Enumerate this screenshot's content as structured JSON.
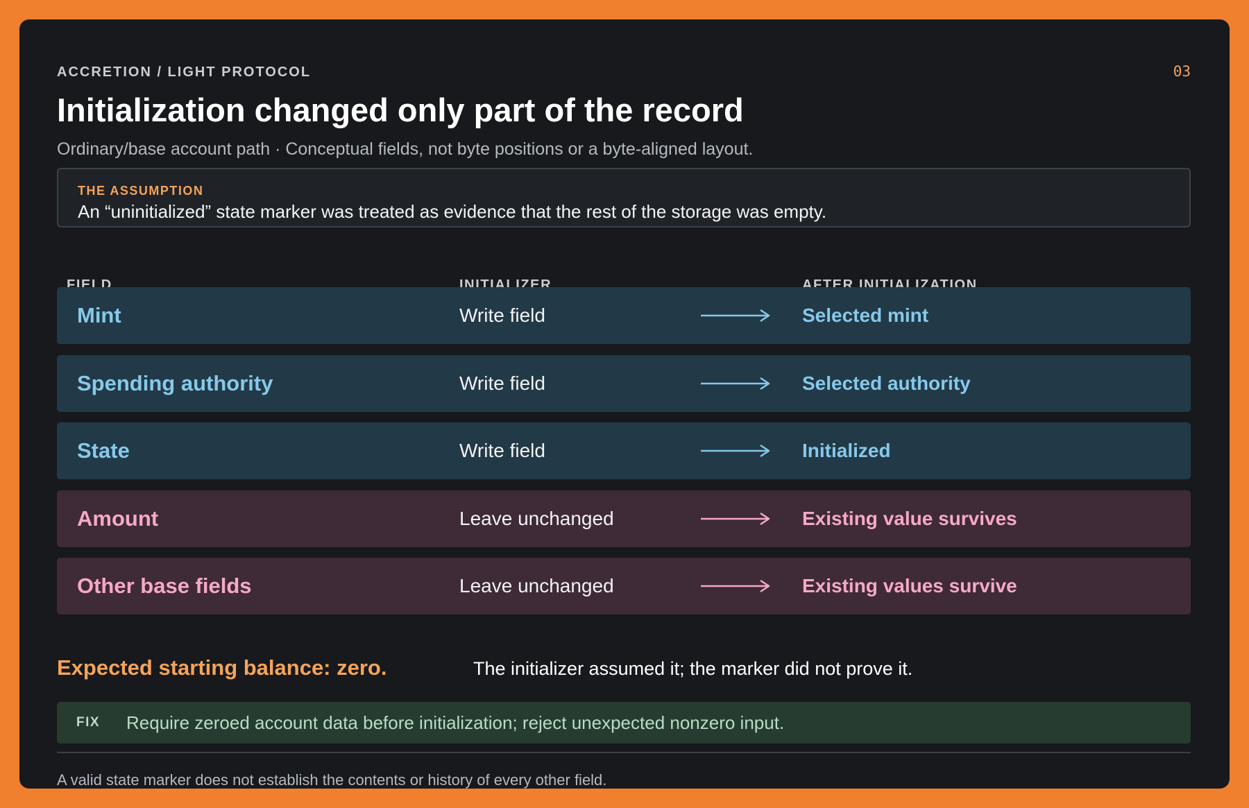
{
  "header": {
    "eyebrow": "ACCRETION / LIGHT PROTOCOL",
    "slide_number": "03",
    "title": "Initialization changed only part of the record",
    "subtitle": "Ordinary/base account path · Conceptual fields, not byte positions or a byte-aligned layout."
  },
  "assumption": {
    "label": "THE ASSUMPTION",
    "text": "An “uninitialized” state marker was treated as evidence that the rest of the storage was empty."
  },
  "table": {
    "columns": [
      "FIELD",
      "INITIALIZER",
      "AFTER INITIALIZATION"
    ],
    "rows": [
      {
        "field": "Mint",
        "initializer": "Write field",
        "after": "Selected mint",
        "kind": "written"
      },
      {
        "field": "Spending authority",
        "initializer": "Write field",
        "after": "Selected authority",
        "kind": "written"
      },
      {
        "field": "State",
        "initializer": "Write field",
        "after": "Initialized",
        "kind": "written"
      },
      {
        "field": "Amount",
        "initializer": "Leave unchanged",
        "after": "Existing value survives",
        "kind": "kept"
      },
      {
        "field": "Other base fields",
        "initializer": "Leave unchanged",
        "after": "Existing values survive",
        "kind": "kept"
      }
    ]
  },
  "expected": {
    "headline": "Expected starting balance: zero.",
    "note": "The initializer assumed it; the marker did not prove it."
  },
  "fix": {
    "label": "FIX",
    "text": "Require zeroed account data before initialization; reject unexpected nonzero input."
  },
  "footnote": "A valid state marker does not establish the contents or history of every other field.",
  "colors": {
    "frame": "#f07f2e",
    "card": "#17191c",
    "accent_orange": "#f4a35a",
    "written_row": "#223947",
    "written_text": "#86c9ea",
    "kept_row": "#3f2a38",
    "kept_text": "#f5a9c6",
    "fix_bg": "#263c30"
  },
  "icons": {
    "row_arrow": "right-arrow-icon"
  }
}
